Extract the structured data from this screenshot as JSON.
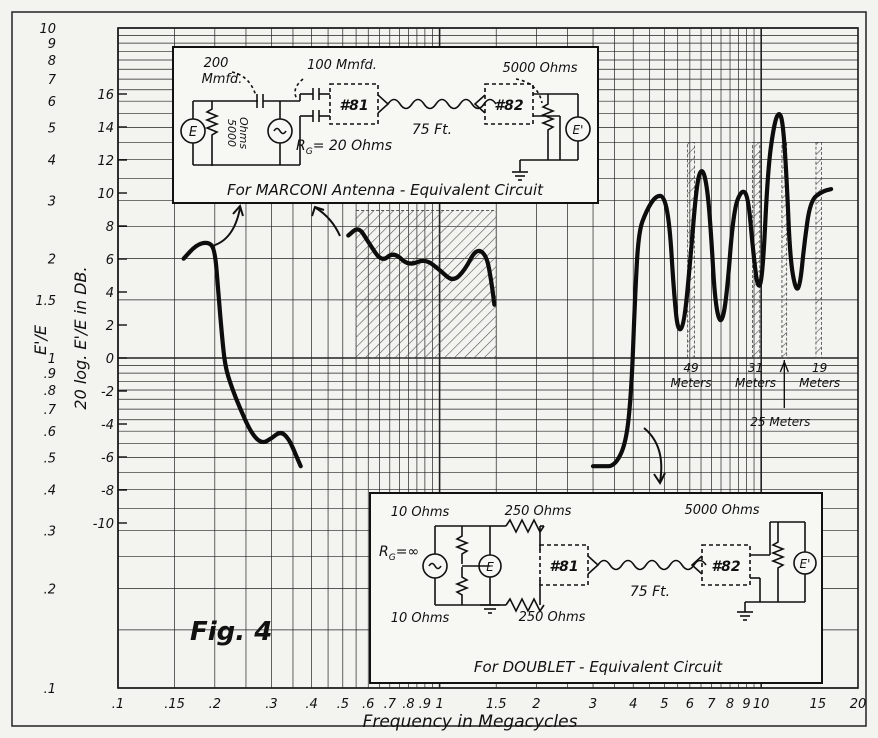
{
  "chart_data": {
    "type": "line",
    "title": "Fig. 4",
    "xlabel": "Frequency in Megacycles",
    "ylabel_left": "E'/E",
    "ylabel_db": "20 log. E'/E in DB.",
    "x_scale": "log",
    "y_scale": "log",
    "xlim": [
      0.1,
      20
    ],
    "ylim": [
      0.1,
      10
    ],
    "grid": true,
    "x_ticks": [
      {
        "v": 0.1,
        "label": ".1"
      },
      {
        "v": 0.15,
        "label": ".15"
      },
      {
        "v": 0.2,
        "label": ".2"
      },
      {
        "v": 0.3,
        "label": ".3"
      },
      {
        "v": 0.4,
        "label": ".4"
      },
      {
        "v": 0.5,
        "label": ".5"
      },
      {
        "v": 0.6,
        "label": ".6"
      },
      {
        "v": 0.7,
        "label": ".7"
      },
      {
        "v": 0.8,
        "label": ".8"
      },
      {
        "v": 0.9,
        "label": ".9"
      },
      {
        "v": 1,
        "label": "1"
      },
      {
        "v": 1.5,
        "label": "1.5"
      },
      {
        "v": 2,
        "label": "2"
      },
      {
        "v": 3,
        "label": "3"
      },
      {
        "v": 4,
        "label": "4"
      },
      {
        "v": 5,
        "label": "5"
      },
      {
        "v": 6,
        "label": "6"
      },
      {
        "v": 7,
        "label": "7"
      },
      {
        "v": 8,
        "label": "8"
      },
      {
        "v": 9,
        "label": "9"
      },
      {
        "v": 10,
        "label": "10"
      },
      {
        "v": 15,
        "label": "15"
      },
      {
        "v": 20,
        "label": "20"
      }
    ],
    "y_ticks": [
      {
        "v": 0.1,
        "label": ".1"
      },
      {
        "v": 0.2,
        "label": ".2"
      },
      {
        "v": 0.3,
        "label": ".3"
      },
      {
        "v": 0.4,
        "label": ".4"
      },
      {
        "v": 0.5,
        "label": ".5"
      },
      {
        "v": 0.6,
        "label": ".6"
      },
      {
        "v": 0.7,
        "label": ".7"
      },
      {
        "v": 0.8,
        "label": ".8"
      },
      {
        "v": 0.9,
        "label": ".9"
      },
      {
        "v": 1,
        "label": "1"
      },
      {
        "v": 1.5,
        "label": "1.5"
      },
      {
        "v": 2,
        "label": "2"
      },
      {
        "v": 3,
        "label": "3"
      },
      {
        "v": 4,
        "label": "4"
      },
      {
        "v": 5,
        "label": "5"
      },
      {
        "v": 6,
        "label": "6"
      },
      {
        "v": 7,
        "label": "7"
      },
      {
        "v": 8,
        "label": "8"
      },
      {
        "v": 9,
        "label": "9"
      },
      {
        "v": 10,
        "label": "10"
      }
    ],
    "db_ticks": [
      {
        "v": 16,
        "label": "16"
      },
      {
        "v": 14,
        "label": "14"
      },
      {
        "v": 12,
        "label": "12"
      },
      {
        "v": 10,
        "label": "10"
      },
      {
        "v": 8,
        "label": "8"
      },
      {
        "v": 6,
        "label": "6"
      },
      {
        "v": 4,
        "label": "4"
      },
      {
        "v": 2,
        "label": "2"
      },
      {
        "v": 0,
        "label": "0"
      },
      {
        "v": -2,
        "label": "-2"
      },
      {
        "v": -4,
        "label": "-4"
      },
      {
        "v": -6,
        "label": "-6"
      },
      {
        "v": -8,
        "label": "-8"
      },
      {
        "v": -10,
        "label": "-10"
      }
    ],
    "series": [
      {
        "points": [
          [
            0.16,
            2.0
          ],
          [
            0.175,
            2.2
          ],
          [
            0.19,
            2.25
          ],
          [
            0.2,
            2.15
          ],
          [
            0.205,
            1.6
          ],
          [
            0.21,
            1.2
          ],
          [
            0.215,
            0.95
          ],
          [
            0.225,
            0.82
          ],
          [
            0.24,
            0.7
          ],
          [
            0.26,
            0.59
          ],
          [
            0.28,
            0.55
          ],
          [
            0.3,
            0.57
          ],
          [
            0.32,
            0.6
          ],
          [
            0.34,
            0.57
          ],
          [
            0.36,
            0.5
          ],
          [
            0.37,
            0.47
          ]
        ]
      },
      {
        "points": [
          [
            0.52,
            2.35
          ],
          [
            0.56,
            2.5
          ],
          [
            0.6,
            2.25
          ],
          [
            0.66,
            1.95
          ],
          [
            0.72,
            2.1
          ],
          [
            0.8,
            1.9
          ],
          [
            0.9,
            2.0
          ],
          [
            1.0,
            1.85
          ],
          [
            1.1,
            1.7
          ],
          [
            1.2,
            1.85
          ],
          [
            1.3,
            2.15
          ],
          [
            1.4,
            2.05
          ],
          [
            1.45,
            1.7
          ],
          [
            1.48,
            1.45
          ]
        ]
      },
      {
        "points": [
          [
            3.0,
            0.47
          ],
          [
            3.2,
            0.47
          ],
          [
            3.5,
            0.47
          ],
          [
            3.8,
            0.55
          ],
          [
            3.95,
            0.8
          ],
          [
            4.05,
            1.5
          ],
          [
            4.15,
            2.4
          ],
          [
            4.4,
            2.8
          ],
          [
            4.7,
            3.1
          ],
          [
            5.0,
            3.1
          ],
          [
            5.2,
            2.5
          ],
          [
            5.35,
            1.6
          ],
          [
            5.5,
            1.2
          ],
          [
            5.75,
            1.25
          ],
          [
            6.0,
            1.9
          ],
          [
            6.3,
            3.4
          ],
          [
            6.55,
            3.8
          ],
          [
            6.8,
            3.3
          ],
          [
            7.0,
            2.3
          ],
          [
            7.2,
            1.45
          ],
          [
            7.5,
            1.25
          ],
          [
            7.8,
            1.5
          ],
          [
            8.2,
            2.8
          ],
          [
            8.7,
            3.25
          ],
          [
            9.1,
            3.1
          ],
          [
            9.4,
            2.2
          ],
          [
            9.75,
            1.6
          ],
          [
            10.1,
            1.75
          ],
          [
            10.5,
            3.8
          ],
          [
            11.0,
            5.2
          ],
          [
            11.4,
            5.6
          ],
          [
            11.7,
            5.1
          ],
          [
            12.0,
            3.5
          ],
          [
            12.3,
            2.0
          ],
          [
            12.8,
            1.6
          ],
          [
            13.2,
            1.65
          ],
          [
            13.6,
            2.2
          ],
          [
            14.2,
            3.0
          ],
          [
            15.5,
            3.2
          ],
          [
            16.5,
            3.25
          ]
        ]
      }
    ],
    "shaded_bands": [
      {
        "x_from": 0.55,
        "x_to": 1.5,
        "y_from": 1.0,
        "y_to": 2.8
      },
      {
        "x_from": 5.9,
        "x_to": 6.2,
        "y_from": 1.0,
        "y_to": 4.5
      },
      {
        "x_from": 9.4,
        "x_to": 9.9,
        "y_from": 1.0,
        "y_to": 4.5
      },
      {
        "x_from": 11.6,
        "x_to": 12.0,
        "y_from": 1.0,
        "y_to": 4.5
      },
      {
        "x_from": 14.8,
        "x_to": 15.4,
        "y_from": 1.0,
        "y_to": 4.5
      }
    ],
    "band_labels": [
      {
        "x": 6.05,
        "line1": "49",
        "line2": "Meters"
      },
      {
        "x": 9.6,
        "line1": "31",
        "line2": "Meters"
      },
      {
        "x": 15.2,
        "line1": "19",
        "line2": "Meters"
      }
    ],
    "band_25": {
      "x": 11.8,
      "label": "25 Meters"
    }
  },
  "marconi_box": {
    "cap1": "200",
    "cap1_unit": "Mmfd.",
    "cap2": "100 Mmfd.",
    "gen_left": "E",
    "res_left_value": "5000",
    "res_left_unit": "Ohms",
    "rg": "R",
    "rg_sub": "G",
    "rg_value": "= 20 Ohms",
    "tube1": "#81",
    "line_len": "75 Ft.",
    "tube2": "#82",
    "res_right": "5000 Ohms",
    "gen_right": "E'",
    "caption": "For MARCONI Antenna - Equivalent Circuit"
  },
  "doublet_box": {
    "res_top_left": "10 Ohms",
    "res_bot_left": "10 Ohms",
    "rg": "R",
    "rg_sub": "G",
    "rg_value": "=∞",
    "gen_mid": "E",
    "res_top": "250 Ohms",
    "res_bot": "250 Ohms",
    "tube1": "#81",
    "line_len": "75 Ft.",
    "tube2": "#82",
    "res_right": "5000 Ohms",
    "gen_right": "E'",
    "caption": "For DOUBLET - Equivalent Circuit"
  }
}
